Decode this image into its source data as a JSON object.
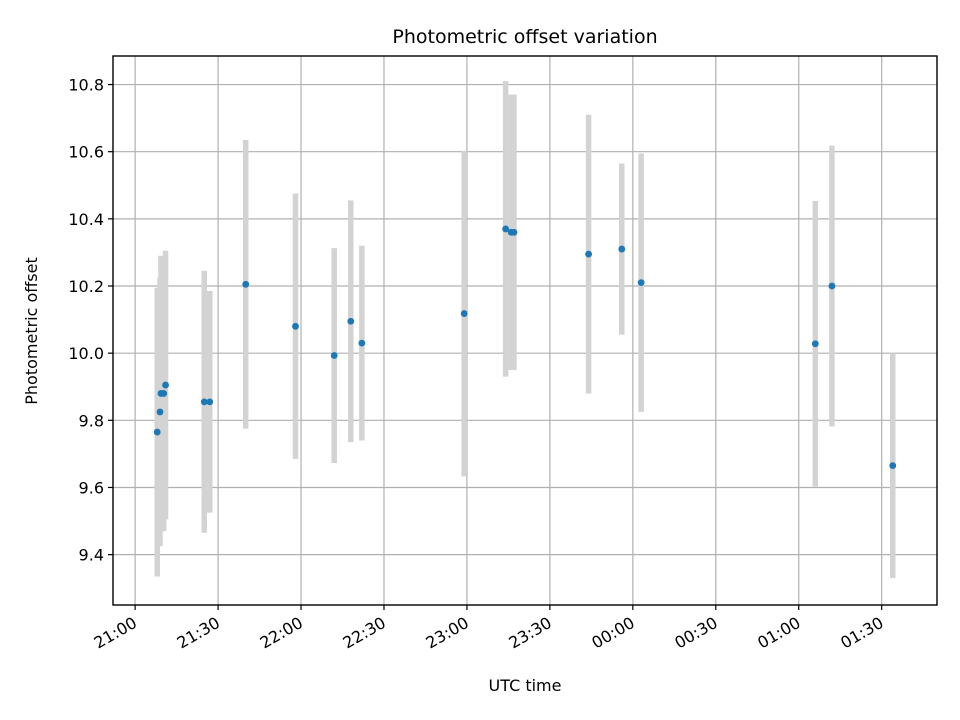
{
  "chart_data": {
    "type": "scatter",
    "title": "Photometric offset variation",
    "xlabel": "UTC time",
    "ylabel": "Photometric offset",
    "xlim": [
      "20:52",
      "01:50"
    ],
    "ylim": [
      9.25,
      10.885
    ],
    "x_ticks": [
      "21:00",
      "21:30",
      "22:00",
      "22:30",
      "23:00",
      "23:30",
      "00:00",
      "00:30",
      "01:00",
      "01:30"
    ],
    "y_ticks": [
      "9.4",
      "9.6",
      "9.8",
      "10.0",
      "10.2",
      "10.4",
      "10.6",
      "10.8"
    ],
    "grid": true,
    "point_color": "#1f77b4",
    "errorbar_color": "#d3d3d3",
    "series": [
      {
        "points": [
          {
            "x": "21:08",
            "y": 9.765,
            "err": 0.43
          },
          {
            "x": "21:09",
            "y": 9.825,
            "err": 0.4
          },
          {
            "x": "21:09",
            "y": 9.88,
            "err": 0.41
          },
          {
            "x": "21:10",
            "y": 9.88,
            "err": 0.41
          },
          {
            "x": "21:11",
            "y": 9.905,
            "err": 0.4
          },
          {
            "x": "21:25",
            "y": 9.855,
            "err": 0.39
          },
          {
            "x": "21:27",
            "y": 9.855,
            "err": 0.33
          },
          {
            "x": "21:40",
            "y": 10.205,
            "err": 0.43
          },
          {
            "x": "21:58",
            "y": 10.08,
            "err": 0.395
          },
          {
            "x": "22:12",
            "y": 9.993,
            "err": 0.32
          },
          {
            "x": "22:18",
            "y": 10.095,
            "err": 0.36
          },
          {
            "x": "22:22",
            "y": 10.03,
            "err": 0.29
          },
          {
            "x": "22:59",
            "y": 10.118,
            "err": 0.485
          },
          {
            "x": "23:14",
            "y": 10.37,
            "err": 0.44
          },
          {
            "x": "23:16",
            "y": 10.36,
            "err": 0.41
          },
          {
            "x": "23:17",
            "y": 10.36,
            "err": 0.41
          },
          {
            "x": "23:44",
            "y": 10.295,
            "err": 0.415
          },
          {
            "x": "23:56",
            "y": 10.31,
            "err": 0.255
          },
          {
            "x": "00:03",
            "y": 10.21,
            "err": 0.385
          },
          {
            "x": "01:06",
            "y": 10.028,
            "err": 0.425
          },
          {
            "x": "01:12",
            "y": 10.2,
            "err": 0.418
          },
          {
            "x": "01:34",
            "y": 9.665,
            "err": 0.335
          }
        ]
      }
    ]
  }
}
